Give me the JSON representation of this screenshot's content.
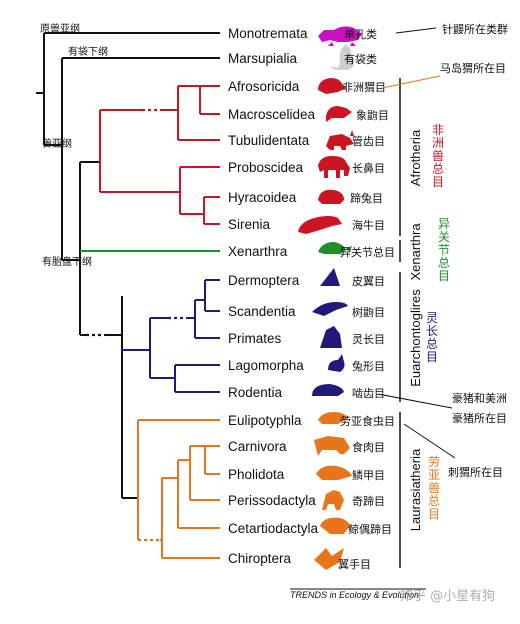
{
  "clades": {
    "prototheria": "原兽亚纲",
    "metatheria": "有袋下纲",
    "theria": "兽亚纲",
    "eutheria": "有胎盘下纲"
  },
  "taxa": [
    {
      "name": "Monotremata",
      "cn": "单孔类",
      "color": "#cc10c0",
      "icon": "platypus-icon"
    },
    {
      "name": "Marsupialia",
      "cn": "有袋类",
      "color": "#c8c8c8",
      "icon": "kangaroo-icon"
    },
    {
      "name": "Afrosoricida",
      "cn": "非洲猬目",
      "color": "#cc1522",
      "icon": "tenrec-icon"
    },
    {
      "name": "Macroscelidea",
      "cn": "象鼩目",
      "color": "#cc1522",
      "icon": "elephant-shrew-icon"
    },
    {
      "name": "Tubulidentata",
      "cn": "管齿目",
      "color": "#cc1522",
      "icon": "aardvark-icon"
    },
    {
      "name": "Proboscidea",
      "cn": "长鼻目",
      "color": "#cc1522",
      "icon": "elephant-icon"
    },
    {
      "name": "Hyracoidea",
      "cn": "蹄兔目",
      "color": "#cc1522",
      "icon": "hyrax-icon"
    },
    {
      "name": "Sirenia",
      "cn": "海牛目",
      "color": "#cc1522",
      "icon": "manatee-icon"
    },
    {
      "name": "Xenarthra",
      "cn": "异关节总目",
      "color": "#1e8f2c",
      "icon": "armadillo-icon"
    },
    {
      "name": "Dermoptera",
      "cn": "皮翼目",
      "color": "#201a7a",
      "icon": "colugo-icon"
    },
    {
      "name": "Scandentia",
      "cn": "树鼩目",
      "color": "#201a7a",
      "icon": "treeshrew-icon"
    },
    {
      "name": "Primates",
      "cn": "灵长目",
      "color": "#201a7a",
      "icon": "primate-icon"
    },
    {
      "name": "Lagomorpha",
      "cn": "兔形目",
      "color": "#201a7a",
      "icon": "rabbit-icon"
    },
    {
      "name": "Rodentia",
      "cn": "啮齿目",
      "color": "#201a7a",
      "icon": "rodent-icon"
    },
    {
      "name": "Eulipotyphla",
      "cn": "劳亚食虫目",
      "color": "#e8751c",
      "icon": "hedgehog-icon"
    },
    {
      "name": "Carnivora",
      "cn": "食肉目",
      "color": "#e8751c",
      "icon": "cat-icon"
    },
    {
      "name": "Pholidota",
      "cn": "鳞甲目",
      "color": "#e8751c",
      "icon": "pangolin-icon"
    },
    {
      "name": "Perissodactyla",
      "cn": "奇蹄目",
      "color": "#e8751c",
      "icon": "horse-icon"
    },
    {
      "name": "Cetartiodactyla",
      "cn": "鲸偶蹄目",
      "color": "#e8751c",
      "icon": "whale-icon"
    },
    {
      "name": "Chiroptera",
      "cn": "翼手目",
      "color": "#e8751c",
      "icon": "bat-icon"
    }
  ],
  "superorders": [
    {
      "name": "Afrotheria",
      "cn": "非洲兽总目",
      "color": "#cc1522"
    },
    {
      "name": "Xenarthra",
      "cn": "异关节总目",
      "color": "#1e8f2c"
    },
    {
      "name": "Euarchontoglires",
      "cn": "灵长总目",
      "color": "#201a7a"
    },
    {
      "name": "Laurasiatheria",
      "cn": "劳亚兽总目",
      "color": "#e8751c"
    }
  ],
  "annotations": {
    "echidna": "针鼹所在类群",
    "tenrec": "马岛猬所在目",
    "peccary_line1": "豪猪和美洲",
    "peccary_line2": "豪猪所在目",
    "hedgehog": "刺猬所在目"
  },
  "source": "TRENDS in Ecology & Evolution",
  "watermark": "知乎 @小星有狗"
}
